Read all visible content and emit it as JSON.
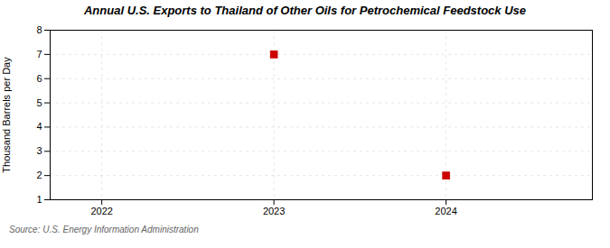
{
  "chart_data": {
    "type": "scatter",
    "title": "Annual U.S. Exports to Thailand of Other Oils for Petrochemical Feedstock Use",
    "ylabel": "Thousand Barrels per Day",
    "source": "Source: U.S. Energy Information Administration",
    "x": [
      2023,
      2024
    ],
    "values": [
      7,
      2
    ],
    "xlim": [
      2021.7,
      2024.85
    ],
    "xticks": [
      2022,
      2023,
      2024
    ],
    "ylim": [
      1,
      8
    ],
    "yticks": [
      1,
      2,
      3,
      4,
      5,
      6,
      7,
      8
    ],
    "color": "#cc0000",
    "marker": "square",
    "grid": true
  }
}
